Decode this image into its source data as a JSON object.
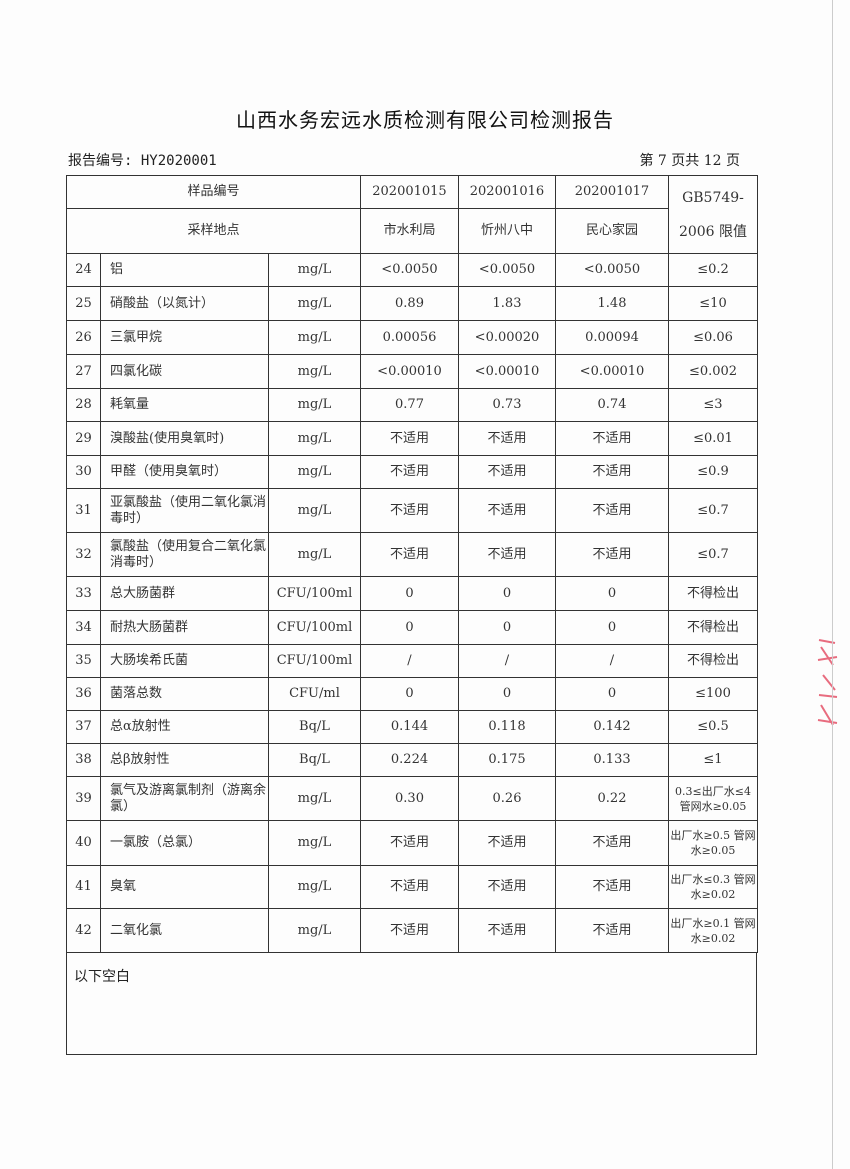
{
  "title": "山西水务宏远水质检测有限公司检测报告",
  "report_no": "报告编号: HY2020001",
  "page_info": "第 7 页共 12 页",
  "header": {
    "sample_no_label": "样品编号",
    "location_label": "采样地点",
    "limit_label_1": "GB5749-",
    "limit_label_2": "2006 限值",
    "samples": [
      {
        "no": "202001015",
        "loc": "市水利局"
      },
      {
        "no": "202001016",
        "loc": "忻州八中"
      },
      {
        "no": "202001017",
        "loc": "民心家园"
      }
    ]
  },
  "rows": [
    {
      "n": "24",
      "name": "铝",
      "unit": "mg/L",
      "v": [
        "<0.0050",
        "<0.0050",
        "<0.0050"
      ],
      "lim": "≤0.2"
    },
    {
      "n": "25",
      "name": "硝酸盐（以氮计）",
      "unit": "mg/L",
      "v": [
        "0.89",
        "1.83",
        "1.48"
      ],
      "lim": "≤10"
    },
    {
      "n": "26",
      "name": "三氯甲烷",
      "unit": "mg/L",
      "v": [
        "0.00056",
        "<0.00020",
        "0.00094"
      ],
      "lim": "≤0.06"
    },
    {
      "n": "27",
      "name": "四氯化碳",
      "unit": "mg/L",
      "v": [
        "<0.00010",
        "<0.00010",
        "<0.00010"
      ],
      "lim": "≤0.002"
    },
    {
      "n": "28",
      "name": "耗氧量",
      "unit": "mg/L",
      "v": [
        "0.77",
        "0.73",
        "0.74"
      ],
      "lim": "≤3"
    },
    {
      "n": "29",
      "name": "溴酸盐(使用臭氧时)",
      "unit": "mg/L",
      "v": [
        "不适用",
        "不适用",
        "不适用"
      ],
      "lim": "≤0.01"
    },
    {
      "n": "30",
      "name": "甲醛（使用臭氧时）",
      "unit": "mg/L",
      "v": [
        "不适用",
        "不适用",
        "不适用"
      ],
      "lim": "≤0.9"
    },
    {
      "n": "31",
      "name": "亚氯酸盐（使用二氧化氯消毒时）",
      "unit": "mg/L",
      "v": [
        "不适用",
        "不适用",
        "不适用"
      ],
      "lim": "≤0.7"
    },
    {
      "n": "32",
      "name": "氯酸盐（使用复合二氧化氯消毒时）",
      "unit": "mg/L",
      "v": [
        "不适用",
        "不适用",
        "不适用"
      ],
      "lim": "≤0.7"
    },
    {
      "n": "33",
      "name": "总大肠菌群",
      "unit": "CFU/100ml",
      "v": [
        "0",
        "0",
        "0"
      ],
      "lim": "不得检出"
    },
    {
      "n": "34",
      "name": "耐热大肠菌群",
      "unit": "CFU/100ml",
      "v": [
        "0",
        "0",
        "0"
      ],
      "lim": "不得检出"
    },
    {
      "n": "35",
      "name": "大肠埃希氏菌",
      "unit": "CFU/100ml",
      "v": [
        "/",
        "/",
        "/"
      ],
      "lim": "不得检出"
    },
    {
      "n": "36",
      "name": "菌落总数",
      "unit": "CFU/ml",
      "v": [
        "0",
        "0",
        "0"
      ],
      "lim": "≤100"
    },
    {
      "n": "37",
      "name": "总α放射性",
      "unit": "Bq/L",
      "v": [
        "0.144",
        "0.118",
        "0.142"
      ],
      "lim": "≤0.5"
    },
    {
      "n": "38",
      "name": "总β放射性",
      "unit": "Bq/L",
      "v": [
        "0.224",
        "0.175",
        "0.133"
      ],
      "lim": "≤1"
    },
    {
      "n": "39",
      "name": "氯气及游离氯制剂（游离余氯）",
      "unit": "mg/L",
      "v": [
        "0.30",
        "0.26",
        "0.22"
      ],
      "lim": "0.3≤出厂水≤4 管网水≥0.05"
    },
    {
      "n": "40",
      "name": "一氯胺（总氯）",
      "unit": "mg/L",
      "v": [
        "不适用",
        "不适用",
        "不适用"
      ],
      "lim": "出厂水≥0.5 管网水≥0.05"
    },
    {
      "n": "41",
      "name": "臭氧",
      "unit": "mg/L",
      "v": [
        "不适用",
        "不适用",
        "不适用"
      ],
      "lim": "出厂水≤0.3 管网水≥0.02"
    },
    {
      "n": "42",
      "name": "二氧化氯",
      "unit": "mg/L",
      "v": [
        "不适用",
        "不适用",
        "不适用"
      ],
      "lim": "出厂水≥0.1 管网水≥0.02"
    }
  ],
  "remark": "以下空白",
  "stamp_color": "#e0304a"
}
